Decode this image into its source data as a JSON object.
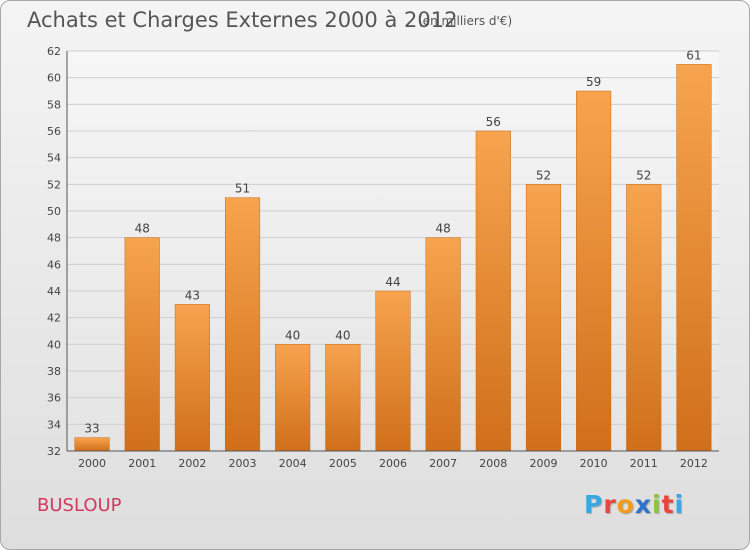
{
  "chart_data": {
    "type": "bar",
    "title": "Achats et Charges Externes 2000 à 2012",
    "subtitle": "(en milliers d'€)",
    "xlabel": "",
    "ylabel": "",
    "categories": [
      "2000",
      "2001",
      "2002",
      "2003",
      "2004",
      "2005",
      "2006",
      "2007",
      "2008",
      "2009",
      "2010",
      "2011",
      "2012"
    ],
    "values": [
      33,
      48,
      43,
      51,
      40,
      40,
      44,
      48,
      56,
      52,
      59,
      52,
      61
    ],
    "ylim": [
      32,
      62
    ],
    "yticks": [
      32,
      34,
      36,
      38,
      40,
      42,
      44,
      46,
      48,
      50,
      52,
      54,
      56,
      58,
      60,
      62
    ],
    "grid": true,
    "data_labels": true,
    "bar_color_top": "#f7a44f",
    "bar_color_bottom": "#d06f1a"
  },
  "footer": {
    "commune": "BUSLOUP",
    "logo_letters": [
      "P",
      "r",
      "o",
      "x",
      "i",
      "t",
      "i"
    ],
    "logo_colors": [
      "#3aa7e0",
      "#e8453c",
      "#f39b1c",
      "#2e73c9",
      "#8cc63f",
      "#e8453c",
      "#3aa7e0"
    ]
  }
}
